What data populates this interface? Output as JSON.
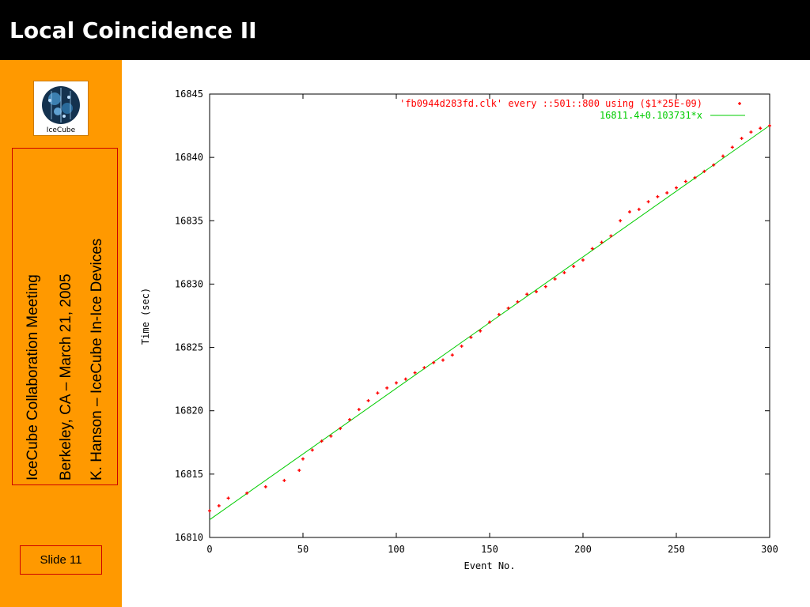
{
  "slide": {
    "title": "Local Coincidence II",
    "logo_text": "IceCube",
    "info_lines": [
      "IceCube Collaboration Meeting",
      "Berkeley, CA – March 21, 2005",
      "K. Hanson – IceCube In-Ice Devices"
    ],
    "slide_number": "Slide 11"
  },
  "colors": {
    "title_bar": "#000000",
    "sidebar": "#ff9900",
    "data": "#ff0000",
    "fit": "#00cc00"
  },
  "chart_data": {
    "type": "scatter",
    "xlabel": "Event No.",
    "ylabel": "Time (sec)",
    "xlim": [
      0,
      300
    ],
    "ylim": [
      16810,
      16845
    ],
    "xticks": [
      "0",
      "50",
      "100",
      "150",
      "200",
      "250",
      "300"
    ],
    "yticks": [
      "16810",
      "16815",
      "16820",
      "16825",
      "16830",
      "16835",
      "16840",
      "16845"
    ],
    "legend": [
      "'fb0944d283fd.clk' every ::501::800 using ($1*25E-09)",
      "16811.4+0.103731*x"
    ],
    "legend_position": "top-right",
    "series": [
      {
        "name": "'fb0944d283fd.clk' every ::501::800 using ($1*25E-09)",
        "marker": "+",
        "x": [
          0,
          5,
          10,
          20,
          30,
          40,
          48,
          50,
          55,
          60,
          65,
          70,
          75,
          80,
          85,
          90,
          95,
          100,
          105,
          110,
          115,
          120,
          125,
          130,
          135,
          140,
          145,
          150,
          155,
          160,
          165,
          170,
          175,
          180,
          185,
          190,
          195,
          200,
          205,
          210,
          215,
          220,
          225,
          230,
          235,
          240,
          245,
          250,
          255,
          260,
          265,
          270,
          275,
          280,
          285,
          290,
          295,
          300
        ],
        "y": [
          16812.1,
          16812.5,
          16813.1,
          16813.5,
          16814.0,
          16814.5,
          16815.3,
          16816.2,
          16816.9,
          16817.6,
          16818.0,
          16818.6,
          16819.3,
          16820.1,
          16820.8,
          16821.4,
          16821.8,
          16822.2,
          16822.5,
          16823.0,
          16823.4,
          16823.8,
          16824.0,
          16824.4,
          16825.1,
          16825.8,
          16826.3,
          16827.0,
          16827.6,
          16828.1,
          16828.6,
          16829.2,
          16829.4,
          16829.8,
          16830.4,
          16830.9,
          16831.4,
          16831.9,
          16832.8,
          16833.3,
          16833.8,
          16835.0,
          16835.7,
          16835.9,
          16836.5,
          16836.9,
          16837.2,
          16837.6,
          16838.1,
          16838.4,
          16838.9,
          16839.4,
          16840.1,
          16840.8,
          16841.5,
          16842.0,
          16842.3,
          16842.5
        ]
      },
      {
        "name": "16811.4+0.103731*x",
        "type": "line",
        "x": [
          0,
          300
        ],
        "y": [
          16811.4,
          16842.5193
        ]
      }
    ]
  }
}
